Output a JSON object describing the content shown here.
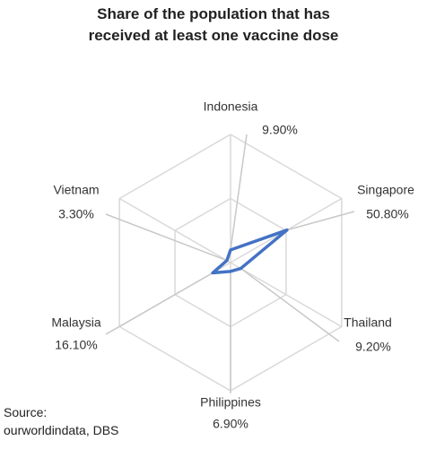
{
  "chart_data": {
    "type": "radar",
    "title": "Share of the population that has received at least one vaccine dose",
    "categories": [
      "Indonesia",
      "Singapore",
      "Thailand",
      "Philippines",
      "Malaysia",
      "Vietnam"
    ],
    "series": [
      {
        "color": "#4472c4",
        "values": [
          9.9,
          50.8,
          9.2,
          6.9,
          16.1,
          3.3
        ],
        "value_labels": [
          "9.90%",
          "50.80%",
          "9.20%",
          "6.90%",
          "16.10%",
          "3.30%"
        ]
      }
    ],
    "ylim": [
      0,
      100
    ],
    "yticks": [
      0,
      50,
      100
    ],
    "grid": true,
    "source_label": "Source:",
    "source": "ourworldindata, DBS"
  }
}
